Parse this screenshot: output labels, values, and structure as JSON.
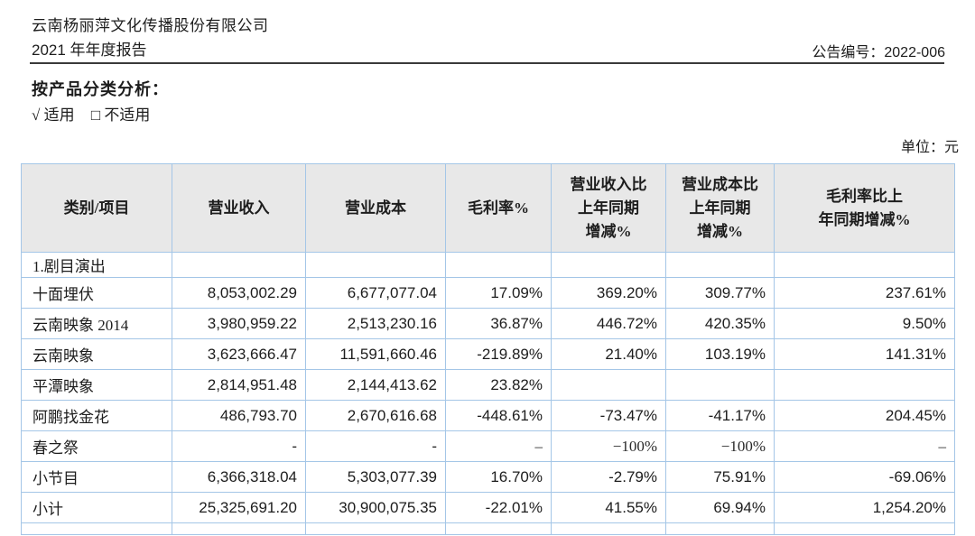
{
  "page": {
    "company_line1": "云南杨丽萍文化传播股份有限公司",
    "company_line2": "2021 年年度报告",
    "notice_number": "公告编号：2022-006",
    "section_title": "按产品分类分析：",
    "applicable_check": "√",
    "applicable_label": "适用",
    "not_applicable_check": "□",
    "not_applicable_label": "不适用",
    "unit_label": "单位：元"
  },
  "table": {
    "columns": [
      {
        "label": "类别/项目"
      },
      {
        "label": "营业收入"
      },
      {
        "label": "营业成本"
      },
      {
        "label": "毛利率%"
      },
      {
        "label": "营业收入比\n上年同期\n增减%"
      },
      {
        "label": "营业成本比\n上年同期\n增减%"
      },
      {
        "label": "毛利率比上\n年同期增减%"
      }
    ],
    "rows": [
      {
        "label": "1.剧目演出",
        "type": "section",
        "values": [
          "",
          "",
          "",
          "",
          "",
          ""
        ]
      },
      {
        "label": "十面埋伏",
        "values": [
          "8,053,002.29",
          "6,677,077.04",
          "17.09%",
          "369.20%",
          "309.77%",
          "237.61%"
        ]
      },
      {
        "label": "云南映象 2014",
        "values": [
          "3,980,959.22",
          "2,513,230.16",
          "36.87%",
          "446.72%",
          "420.35%",
          "9.50%"
        ]
      },
      {
        "label": "云南映象",
        "values": [
          "3,623,666.47",
          "11,591,660.46",
          "-219.89%",
          "21.40%",
          "103.19%",
          "141.31%"
        ]
      },
      {
        "label": "平潭映象",
        "values": [
          "2,814,951.48",
          "2,144,413.62",
          "23.82%",
          "",
          "",
          ""
        ]
      },
      {
        "label": "阿鹏找金花",
        "values": [
          "486,793.70",
          "2,670,616.68",
          "-448.61%",
          "-73.47%",
          "-41.17%",
          "204.45%"
        ]
      },
      {
        "label": "春之祭",
        "values": [
          "-",
          "-",
          "–",
          "−100%",
          "−100%",
          "–"
        ]
      },
      {
        "label": "小节目",
        "values": [
          "6,366,318.04",
          "5,303,077.39",
          "16.70%",
          "-2.79%",
          "75.91%",
          "-69.06%"
        ]
      },
      {
        "label": "小计",
        "values": [
          "25,325,691.20",
          "30,900,075.35",
          "-22.01%",
          "41.55%",
          "69.94%",
          "1,254.20%"
        ]
      },
      {
        "label": "",
        "type": "partial",
        "values": [
          "",
          "",
          "",
          "",
          "",
          ""
        ]
      }
    ]
  },
  "colors": {
    "table_border": "#a4c6e7",
    "header_bg": "#e8e8e8",
    "rule": "#3a3a3a",
    "text": "#1d1d1d"
  }
}
